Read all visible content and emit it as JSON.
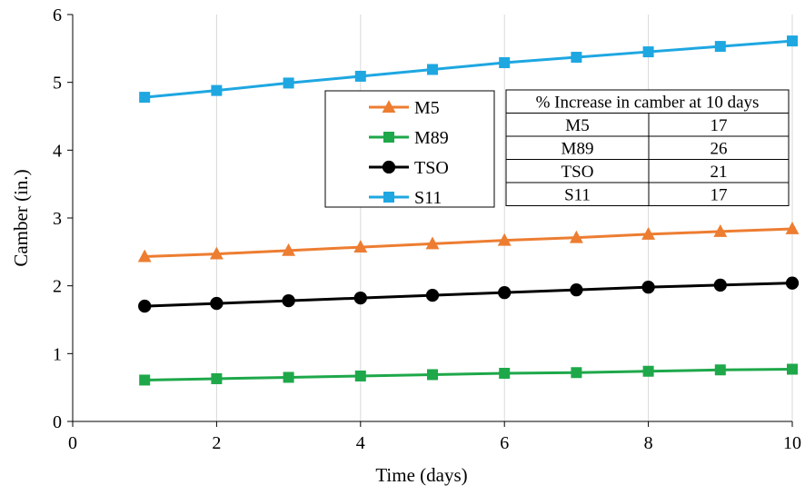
{
  "chart_data": {
    "type": "line",
    "xlabel": "Time (days)",
    "ylabel": "Camber (in.)",
    "xlim": [
      0,
      10
    ],
    "ylim": [
      0,
      6
    ],
    "xticks": [
      0,
      2,
      4,
      6,
      8,
      10
    ],
    "yticks": [
      0,
      1,
      2,
      3,
      4,
      5,
      6
    ],
    "grid": "vertical gridlines",
    "legend_placement": "center",
    "x": [
      1,
      2,
      3,
      4,
      5,
      6,
      7,
      8,
      9,
      10
    ],
    "series": [
      {
        "name": "M5",
        "color": "#ED7D31",
        "marker": "triangle",
        "values": [
          2.43,
          2.47,
          2.52,
          2.57,
          2.62,
          2.67,
          2.71,
          2.76,
          2.8,
          2.84
        ]
      },
      {
        "name": "M89",
        "color": "#1EA84A",
        "marker": "square",
        "values": [
          0.61,
          0.63,
          0.65,
          0.67,
          0.69,
          0.71,
          0.72,
          0.74,
          0.76,
          0.77
        ]
      },
      {
        "name": "TSO",
        "color": "#000000",
        "marker": "circle",
        "values": [
          1.7,
          1.74,
          1.78,
          1.82,
          1.86,
          1.9,
          1.94,
          1.98,
          2.01,
          2.04
        ]
      },
      {
        "name": "S11",
        "color": "#1EA7E1",
        "marker": "square",
        "values": [
          4.78,
          4.88,
          4.99,
          5.09,
          5.19,
          5.29,
          5.37,
          5.45,
          5.53,
          5.61
        ]
      }
    ],
    "table": {
      "header": "% Increase in camber at 10 days",
      "rows": [
        [
          "M5",
          "17"
        ],
        [
          "M89",
          "26"
        ],
        [
          "TSO",
          "21"
        ],
        [
          "S11",
          "17"
        ]
      ]
    }
  }
}
